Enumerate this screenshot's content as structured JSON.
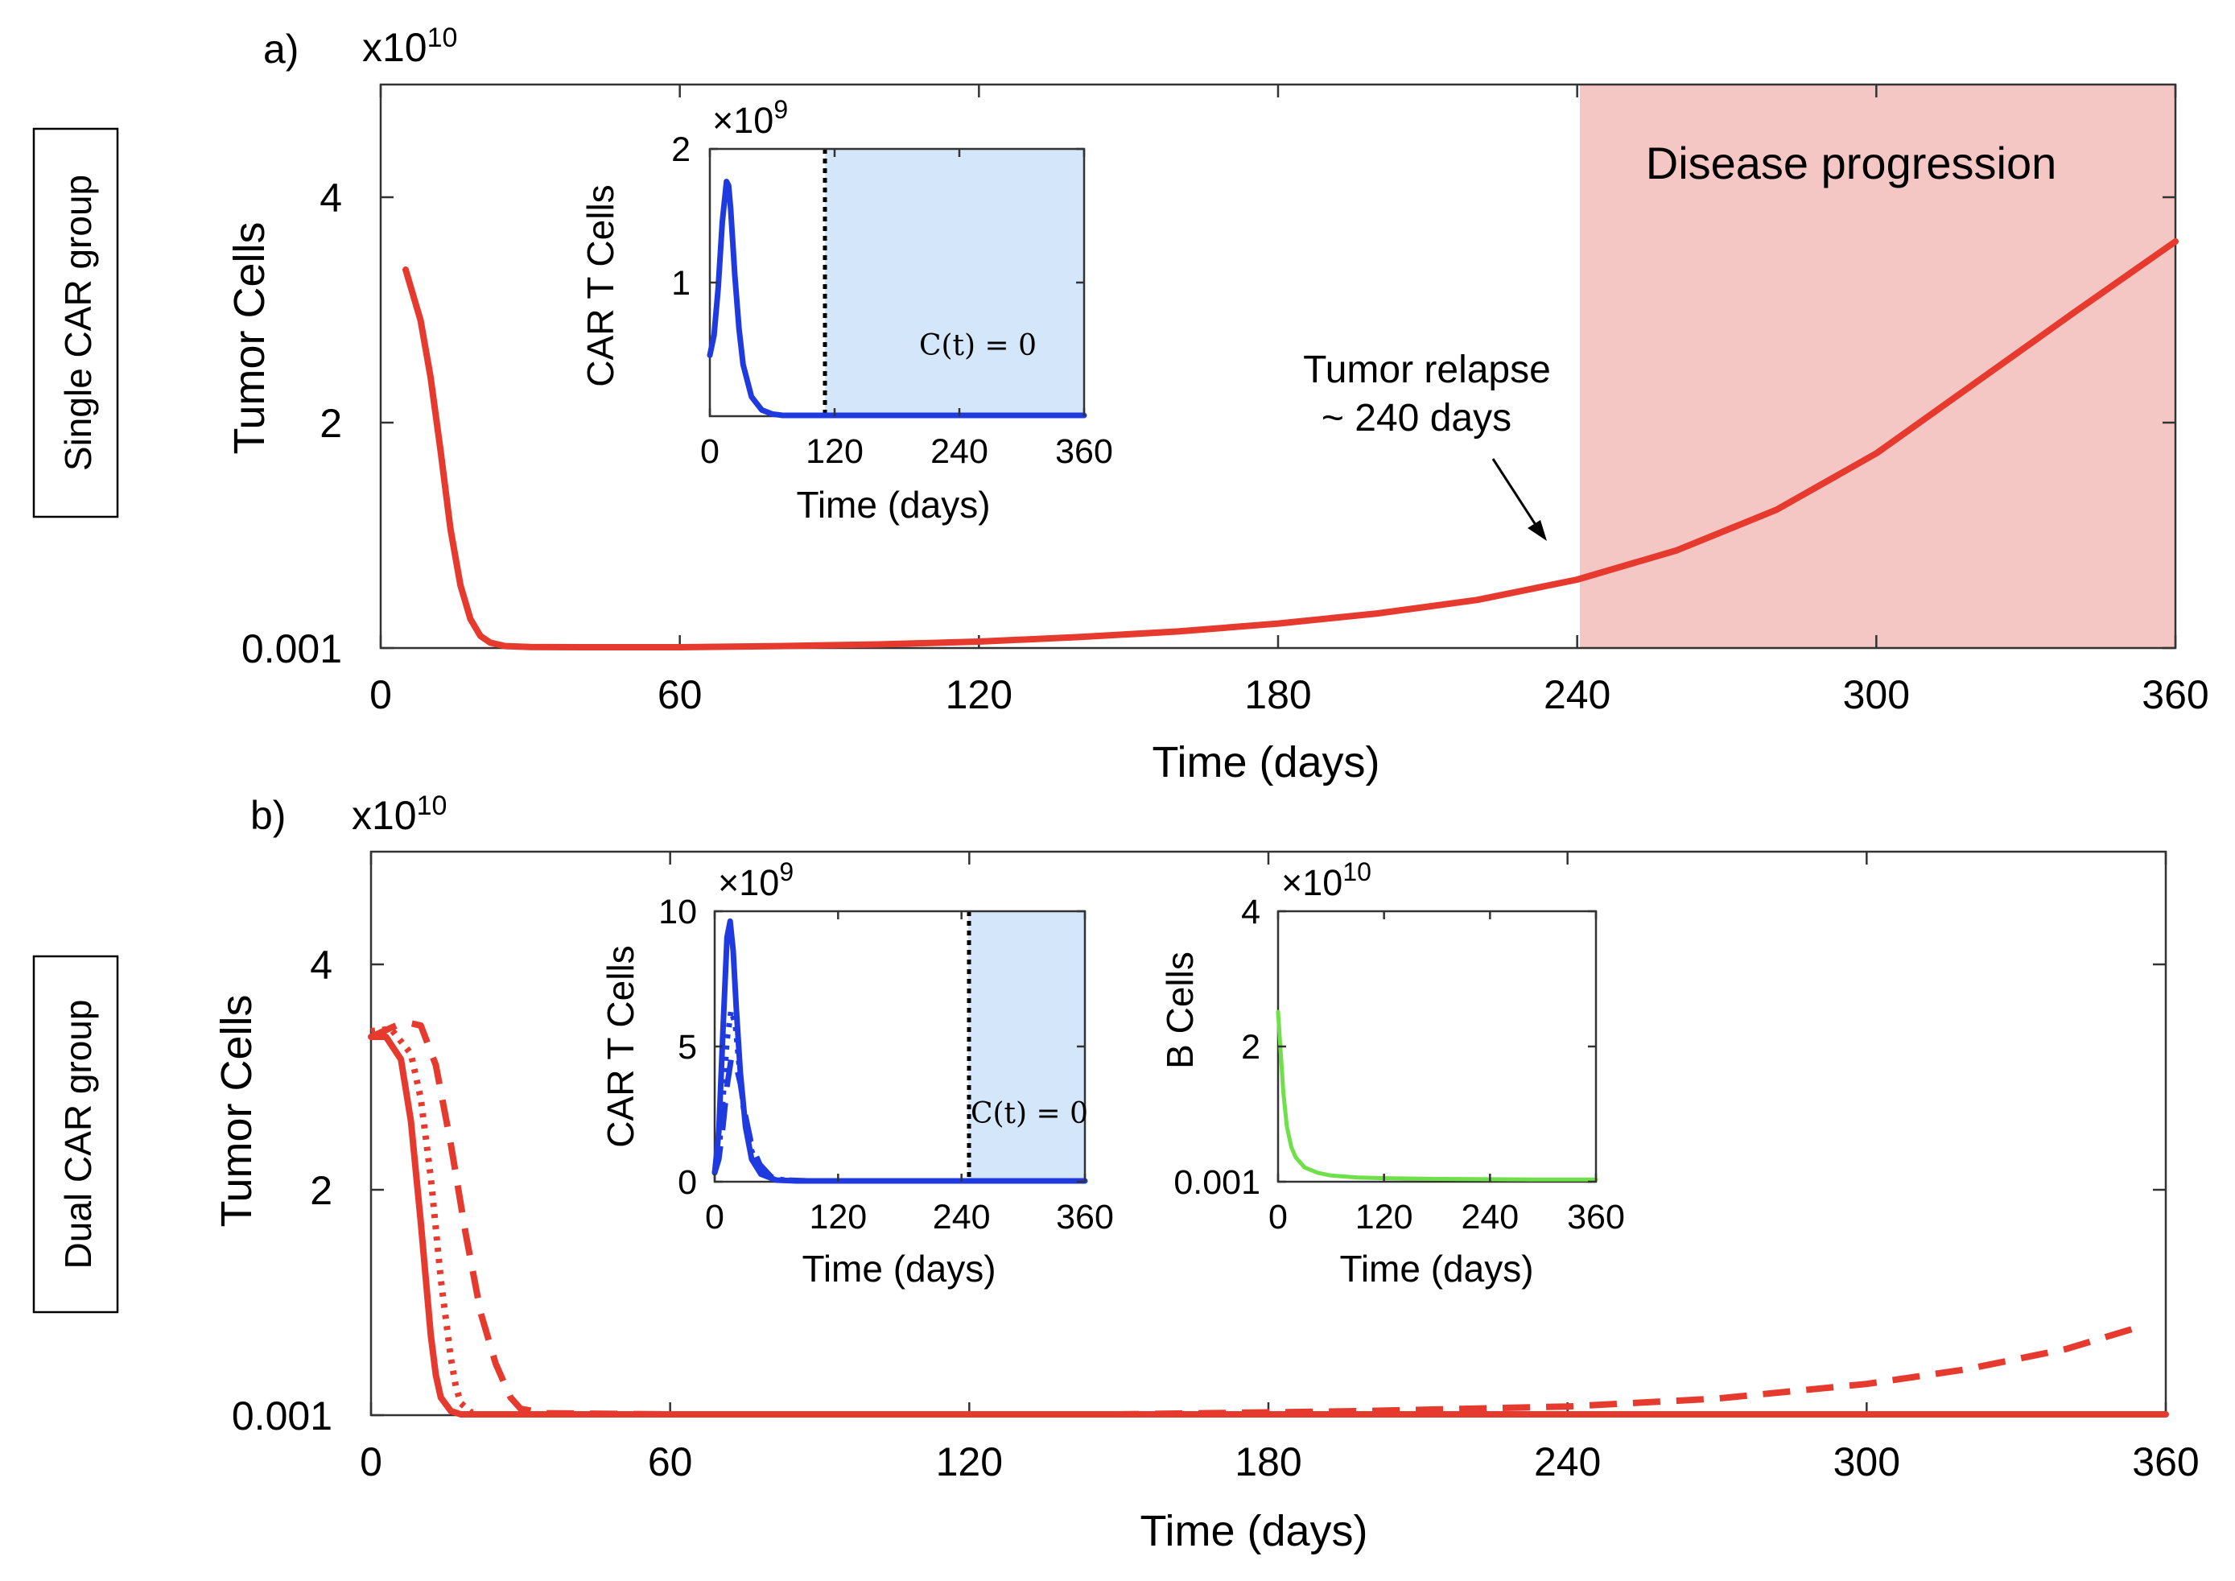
{
  "chart_data": [
    {
      "id": "a",
      "type": "line",
      "panel_label": "a)",
      "group_label": "Single CAR group",
      "title": "",
      "xlabel": "Time (days)",
      "ylabel": "Tumor Cells",
      "y_exponent": "x10",
      "y_exponent_power": "10",
      "xlim": [
        0,
        360
      ],
      "x_ticks": [
        "0",
        "60",
        "120",
        "180",
        "240",
        "300",
        "360"
      ],
      "y_ticks": [
        {
          "value": 0,
          "label": "0.001"
        },
        {
          "value": 2,
          "label": "2"
        },
        {
          "value": 4,
          "label": "4"
        }
      ],
      "ylim": [
        0,
        5
      ],
      "shaded_region": {
        "x_range": [
          240,
          360
        ],
        "label": "Disease progression",
        "color": "#f4c6c4"
      },
      "annotation": {
        "line1": "Tumor relapse",
        "line2": "~ 240 days",
        "points_to_x": 240
      },
      "series": [
        {
          "name": "tumor",
          "style": "solid",
          "color": "#e63a2e",
          "x": [
            5,
            8,
            10,
            12,
            14,
            16,
            18,
            20,
            22,
            25,
            30,
            40,
            60,
            80,
            100,
            120,
            140,
            160,
            180,
            200,
            220,
            240,
            260,
            280,
            300,
            320,
            340,
            360
          ],
          "y": [
            3.35,
            2.9,
            2.4,
            1.75,
            1.05,
            0.55,
            0.25,
            0.1,
            0.04,
            0.01,
            0.002,
            0.0,
            0.0,
            0.01,
            0.025,
            0.05,
            0.09,
            0.14,
            0.21,
            0.3,
            0.42,
            0.6,
            0.86,
            1.22,
            1.72,
            2.35,
            2.98,
            3.6
          ]
        }
      ],
      "insets": [
        {
          "id": "a1",
          "type": "line",
          "xlabel": "Time (days)",
          "ylabel": "CAR T Cells",
          "y_exponent": "×10",
          "y_exponent_power": "9",
          "xlim": [
            0,
            360
          ],
          "ylim": [
            0,
            2
          ],
          "x_ticks": [
            "0",
            "120",
            "240",
            "360"
          ],
          "y_ticks": [
            {
              "value": 1,
              "label": "1"
            },
            {
              "value": 2,
              "label": "2"
            }
          ],
          "vline_x": 115,
          "shaded_region": {
            "x_range": [
              115,
              360
            ],
            "color": "#d4e6fa"
          },
          "math_label": "C(t) = 0",
          "series": [
            {
              "name": "CAR T",
              "style": "solid",
              "color": "#1f3be0",
              "x": [
                0,
                4,
                8,
                12,
                16,
                18,
                20,
                22,
                24,
                28,
                32,
                40,
                50,
                60,
                70,
                80,
                120,
                200,
                360
              ],
              "y": [
                0.45,
                0.6,
                0.95,
                1.45,
                1.75,
                1.72,
                1.55,
                1.3,
                1.05,
                0.65,
                0.38,
                0.14,
                0.04,
                0.01,
                0.0,
                0.0,
                0.0,
                0.0,
                0.0
              ]
            }
          ]
        }
      ]
    },
    {
      "id": "b",
      "type": "line",
      "panel_label": "b)",
      "group_label": "Dual CAR group",
      "title": "",
      "xlabel": "Time (days)",
      "ylabel": "Tumor Cells",
      "y_exponent": "x10",
      "y_exponent_power": "10",
      "xlim": [
        0,
        360
      ],
      "x_ticks": [
        "0",
        "60",
        "120",
        "180",
        "240",
        "300",
        "360"
      ],
      "y_ticks": [
        {
          "value": 0,
          "label": "0.001"
        },
        {
          "value": 2,
          "label": "2"
        },
        {
          "value": 4,
          "label": "4"
        }
      ],
      "ylim": [
        0,
        5
      ],
      "series": [
        {
          "name": "solid",
          "style": "solid",
          "color": "#e63a2e",
          "x": [
            0,
            3,
            6,
            8,
            10,
            12,
            13,
            14,
            16,
            18,
            20,
            30,
            60,
            120,
            240,
            360
          ],
          "y": [
            3.35,
            3.35,
            3.15,
            2.6,
            1.7,
            0.7,
            0.35,
            0.15,
            0.03,
            0.0,
            0.0,
            0.0,
            0.0,
            0.0,
            0.0,
            0.0
          ]
        },
        {
          "name": "dotted",
          "style": "dotted",
          "color": "#e63a2e",
          "x": [
            0,
            4,
            8,
            10,
            12,
            14,
            16,
            17,
            18,
            20,
            22,
            30,
            60,
            120,
            240,
            360
          ],
          "y": [
            3.4,
            3.42,
            3.2,
            2.8,
            2.1,
            1.2,
            0.5,
            0.25,
            0.1,
            0.02,
            0.0,
            0.0,
            0.0,
            0.0,
            0.0,
            0.0
          ]
        },
        {
          "name": "dashed",
          "style": "dashed",
          "color": "#e63a2e",
          "x": [
            0,
            5,
            8,
            10,
            13,
            16,
            19,
            22,
            25,
            28,
            30,
            35,
            60,
            100,
            150,
            200,
            240,
            270,
            300,
            320,
            340,
            355
          ],
          "y": [
            3.35,
            3.45,
            3.47,
            3.45,
            3.1,
            2.4,
            1.6,
            0.9,
            0.45,
            0.15,
            0.05,
            0.01,
            0.0,
            0.0,
            0.0,
            0.03,
            0.07,
            0.14,
            0.27,
            0.4,
            0.58,
            0.78
          ]
        }
      ],
      "insets": [
        {
          "id": "b1",
          "type": "line",
          "xlabel": "Time (days)",
          "ylabel": "CAR T Cells",
          "y_exponent": "×10",
          "y_exponent_power": "9",
          "xlim": [
            0,
            360
          ],
          "ylim": [
            0,
            10
          ],
          "x_ticks": [
            "0",
            "120",
            "240",
            "360"
          ],
          "y_ticks": [
            {
              "value": 0,
              "label": "0"
            },
            {
              "value": 5,
              "label": "5"
            },
            {
              "value": 10,
              "label": "10"
            }
          ],
          "vline_x": 248,
          "shaded_region": {
            "x_range": [
              248,
              360
            ],
            "color": "#d4e6fa"
          },
          "math_label": "C(t) = 0",
          "series": [
            {
              "name": "solid",
              "style": "solid",
              "color": "#1f3be0",
              "x": [
                0,
                4,
                8,
                12,
                15,
                18,
                21,
                25,
                30,
                36,
                45,
                60,
                80,
                360
              ],
              "y": [
                0.3,
                1.8,
                5.5,
                9.0,
                9.6,
                8.5,
                6.4,
                4.0,
                2.0,
                0.8,
                0.25,
                0.03,
                0.0,
                0.0
              ]
            },
            {
              "name": "dotted",
              "style": "dotted",
              "color": "#1f3be0",
              "x": [
                0,
                4,
                8,
                12,
                16,
                20,
                24,
                28,
                34,
                42,
                55,
                70,
                90,
                360
              ],
              "y": [
                0.3,
                1.0,
                3.0,
                5.2,
                6.3,
                5.8,
                4.2,
                2.7,
                1.3,
                0.5,
                0.1,
                0.02,
                0.0,
                0.0
              ]
            },
            {
              "name": "dashed",
              "style": "dashed",
              "color": "#1f3be0",
              "x": [
                0,
                4,
                8,
                12,
                16,
                20,
                25,
                30,
                36,
                44,
                55,
                70,
                90,
                360
              ],
              "y": [
                0.3,
                0.8,
                2.0,
                3.5,
                4.5,
                4.4,
                3.6,
                2.4,
                1.3,
                0.6,
                0.15,
                0.03,
                0.0,
                0.0
              ]
            }
          ]
        },
        {
          "id": "b2",
          "type": "line",
          "xlabel": "Time (days)",
          "ylabel": "B Cells",
          "y_exponent": "×10",
          "y_exponent_power": "10",
          "xlim": [
            0,
            360
          ],
          "ylim": [
            0,
            4
          ],
          "x_ticks": [
            "0",
            "120",
            "240",
            "360"
          ],
          "y_ticks": [
            {
              "value": 0,
              "label": "0.001"
            },
            {
              "value": 2,
              "label": "2"
            },
            {
              "value": 4,
              "label": "4"
            }
          ],
          "series": [
            {
              "name": "B cells",
              "style": "solid",
              "color": "#6fe04a",
              "x": [
                0,
                3,
                6,
                10,
                15,
                20,
                30,
                45,
                60,
                90,
                120,
                180,
                240,
                300,
                360
              ],
              "y": [
                2.5,
                1.9,
                1.3,
                0.8,
                0.5,
                0.35,
                0.2,
                0.12,
                0.08,
                0.05,
                0.04,
                0.03,
                0.025,
                0.02,
                0.02
              ]
            }
          ]
        }
      ]
    }
  ]
}
